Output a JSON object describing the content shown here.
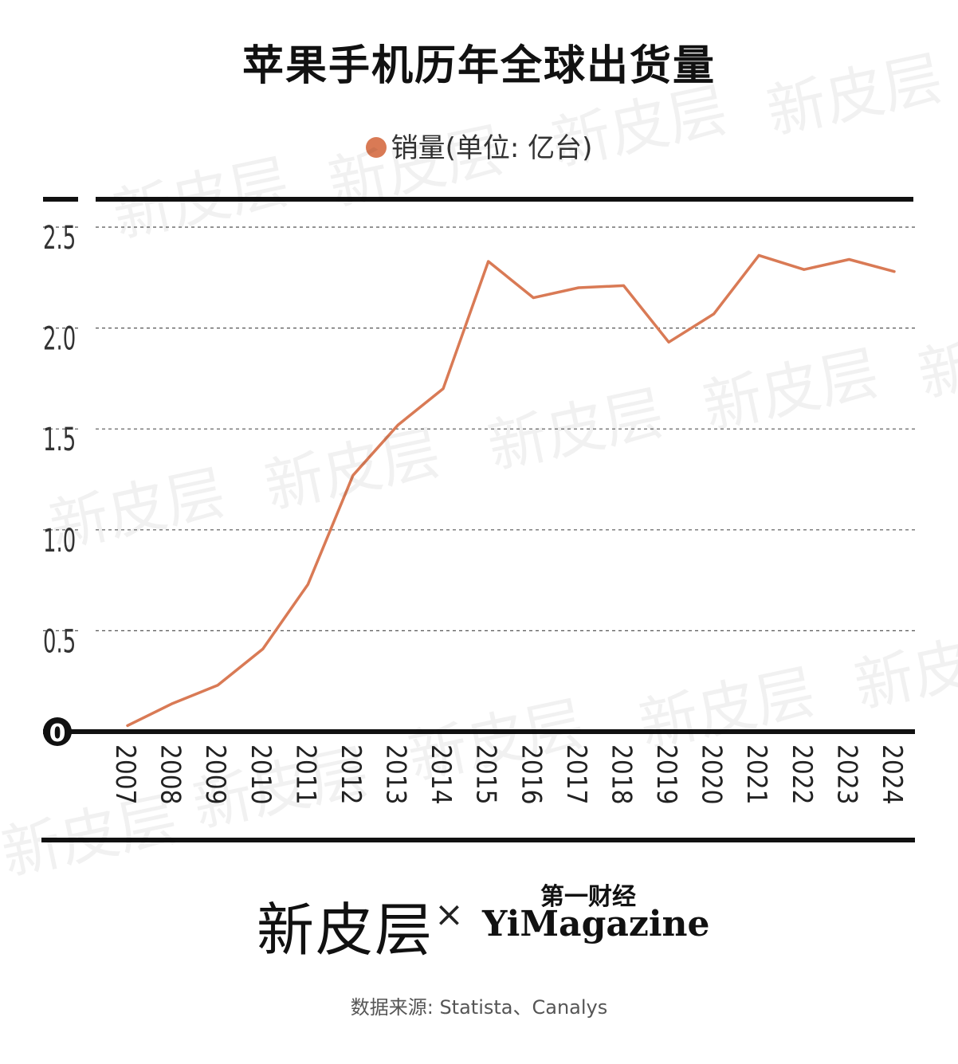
{
  "watermark_text": "新皮层",
  "chart_data": {
    "type": "line",
    "title": "苹果手机历年全球出货量",
    "legend": [
      {
        "label": "销量(单位: 亿台)",
        "color": "#d97a55"
      }
    ],
    "legend_placement": "top",
    "x": [
      "2007",
      "2008",
      "2009",
      "2010",
      "2011",
      "2012",
      "2013",
      "2014",
      "2015",
      "2016",
      "2017",
      "2018",
      "2019",
      "2020",
      "2021",
      "2022",
      "2023",
      "2024"
    ],
    "series": [
      {
        "name": "销量(单位: 亿台)",
        "color": "#d97a55",
        "values": [
          0.03,
          0.14,
          0.23,
          0.41,
          0.73,
          1.27,
          1.52,
          1.7,
          2.33,
          2.15,
          2.2,
          2.21,
          1.93,
          2.07,
          2.36,
          2.29,
          2.34,
          2.28
        ]
      }
    ],
    "y_ticks": [
      "0",
      "0.5",
      "1.0",
      "1.5",
      "2.0",
      "2.5"
    ],
    "y_tick_values": [
      0,
      0.5,
      1.0,
      1.5,
      2.0,
      2.5
    ],
    "ylim": [
      0,
      2.5
    ],
    "grid": "dashed horizontal"
  },
  "footer": {
    "logo_left": "新皮层",
    "separator": "×",
    "logo_right_cn": "第一财经",
    "logo_right_en": "YiMagazine",
    "source": "数据来源: Statista、Canalys"
  }
}
